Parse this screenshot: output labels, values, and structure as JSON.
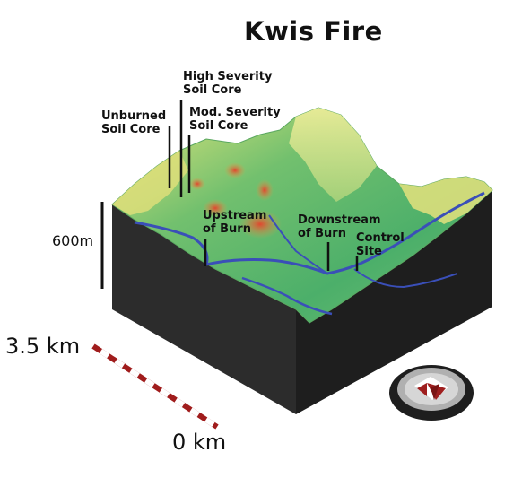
{
  "title": "Kwis Fire",
  "labels": {
    "high_severity": [
      "High Severity",
      "Soil Core"
    ],
    "mod_severity": [
      "Mod. Severity",
      "Soil Core"
    ],
    "unburned": [
      "Unburned",
      "Soil Core"
    ],
    "upstream": [
      "Upstream",
      "of Burn"
    ],
    "downstream": [
      "Downstream",
      "of Burn"
    ],
    "control": [
      "Control",
      "Site"
    ]
  },
  "vertical_scale": "600m",
  "horizontal_scale": {
    "max_label": "3.5 km",
    "min_label": "0 km"
  },
  "compass_icon": "north-arrow-icon",
  "colors": {
    "block_side": "#2a2a2a",
    "terrain_green": "#5fb86a",
    "terrain_yellow": "#e6e57a",
    "burn_red": "#d9543a",
    "river_blue": "#3a4fb8",
    "scale_red": "#a01c1c",
    "compass_red": "#9e1e1e"
  }
}
